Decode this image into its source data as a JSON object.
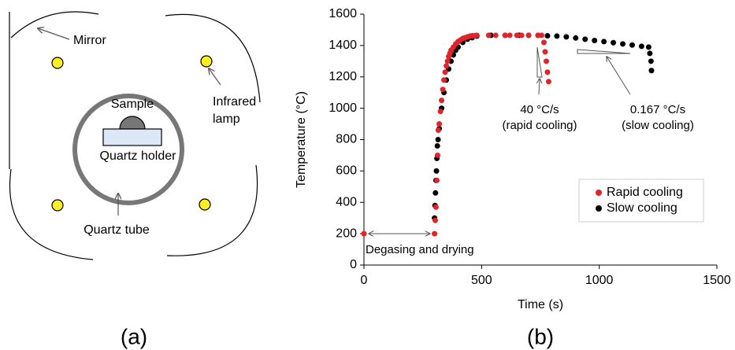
{
  "diagram": {
    "mirror": "Mirror",
    "lamp": [
      "Infrared",
      "lamp"
    ],
    "sample": "Sample",
    "holder": "Quartz holder",
    "tube": "Quartz tube"
  },
  "panel_labels": [
    "(a)",
    "(b)"
  ],
  "chart_data": {
    "type": "scatter",
    "x_label": "Time (s)",
    "y_label": "Temperature (°C)",
    "annotations": [
      "Degasing and drying",
      "40 °C/s",
      "(rapid cooling)",
      "0.167 °C/s",
      "(slow cooling)"
    ],
    "xlim": [
      0,
      1500
    ],
    "xticks": [
      0,
      500,
      1000,
      1500
    ],
    "ylim": [
      0,
      1600
    ],
    "yticks": [
      0,
      200,
      400,
      600,
      800,
      1000,
      1200,
      1400,
      1600
    ],
    "grid": false,
    "legend": "right",
    "series": [
      {
        "name": "Rapid cooling",
        "color": "#e0242b",
        "x": [
          0,
          300,
          303,
          306,
          310,
          313,
          316,
          320,
          325,
          330,
          335,
          340,
          345,
          350,
          355,
          360,
          365,
          370,
          380,
          390,
          400,
          410,
          420,
          430,
          440,
          450,
          460,
          470,
          480,
          530,
          560,
          600,
          620,
          650,
          670,
          700,
          740,
          755,
          765,
          770,
          775,
          780,
          785
        ],
        "values": [
          200,
          200,
          285,
          370,
          540,
          700,
          860,
          900,
          980,
          1050,
          1120,
          1180,
          1230,
          1270,
          1300,
          1330,
          1350,
          1370,
          1390,
          1410,
          1425,
          1435,
          1445,
          1450,
          1455,
          1460,
          1462,
          1463,
          1465,
          1465,
          1465,
          1465,
          1465,
          1465,
          1465,
          1465,
          1465,
          1465,
          1420,
          1360,
          1300,
          1230,
          1170
        ]
      },
      {
        "name": "Slow cooling",
        "color": "#000000",
        "x": [
          300,
          302,
          304,
          306,
          308,
          310,
          312,
          315,
          320,
          330,
          340,
          350,
          360,
          370,
          380,
          390,
          400,
          420,
          440,
          460,
          480,
          540,
          600,
          660,
          700,
          740,
          780,
          820,
          860,
          900,
          940,
          980,
          1020,
          1060,
          1100,
          1140,
          1180,
          1210,
          1215,
          1220,
          1222
        ],
        "values": [
          300,
          380,
          460,
          540,
          600,
          680,
          760,
          800,
          870,
          1000,
          1100,
          1180,
          1250,
          1300,
          1340,
          1370,
          1390,
          1420,
          1440,
          1450,
          1460,
          1465,
          1465,
          1465,
          1465,
          1465,
          1462,
          1460,
          1455,
          1448,
          1440,
          1432,
          1425,
          1418,
          1410,
          1403,
          1395,
          1390,
          1350,
          1300,
          1240
        ]
      }
    ]
  }
}
